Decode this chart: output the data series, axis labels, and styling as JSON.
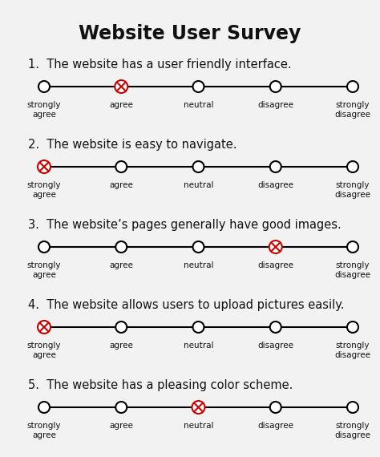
{
  "title": "Website User Survey",
  "background_color": "#f2f2f2",
  "questions": [
    "1.  The website has a user friendly interface.",
    "2.  The website is easy to navigate.",
    "3.  The website’s pages generally have good images.",
    "4.  The website allows users to upload pictures easily.",
    "5.  The website has a pleasing color scheme."
  ],
  "labels": [
    "strongly\nagree",
    "agree",
    "neutral",
    "disagree",
    "strongly\ndisagree"
  ],
  "selected": [
    1,
    0,
    3,
    0,
    2
  ],
  "circle_color": "#000000",
  "selected_color": "#cc0000",
  "line_color": "#000000",
  "title_fontsize": 17,
  "question_fontsize": 10.5,
  "label_fontsize": 7.5
}
